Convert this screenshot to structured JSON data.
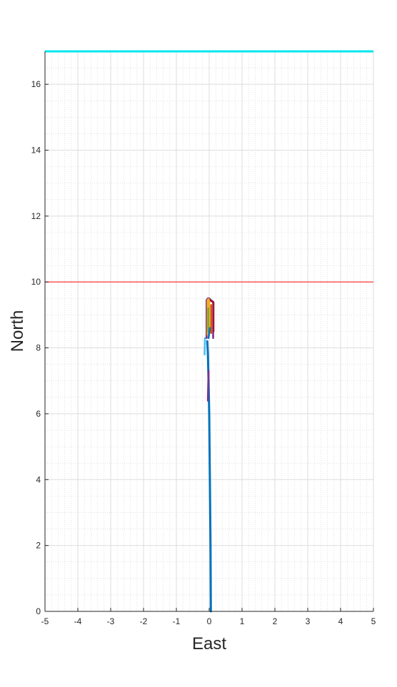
{
  "chart_data": {
    "type": "line",
    "title": "",
    "xlabel": "East",
    "ylabel": "North",
    "xlim": [
      -5,
      5
    ],
    "ylim": [
      0,
      17
    ],
    "xticks": [
      -5,
      -4,
      -3,
      -2,
      -1,
      0,
      1,
      2,
      3,
      4,
      5
    ],
    "yticks": [
      0,
      2,
      4,
      6,
      8,
      10,
      12,
      14,
      16
    ],
    "grid": true,
    "minor_grid": true,
    "reference_lines": [
      {
        "y": 17,
        "color": "#00e5ee"
      },
      {
        "y": 10,
        "color": "#ff3b3b"
      }
    ],
    "series": [
      {
        "color": "#0072bd",
        "x": [
          0.05,
          0.04,
          0.02,
          0.0,
          -0.02,
          -0.04,
          -0.06
        ],
        "y": [
          0.0,
          2.0,
          4.0,
          6.0,
          7.0,
          7.8,
          8.2
        ]
      },
      {
        "color": "#7e2f8e",
        "x": [
          -0.04,
          -0.03,
          -0.02
        ],
        "y": [
          6.4,
          6.9,
          7.3
        ]
      },
      {
        "color": "#4dbeee",
        "x": [
          -0.14,
          -0.13
        ],
        "y": [
          7.8,
          8.3
        ]
      },
      {
        "color": "#7e2f8e",
        "x": [
          -0.08,
          -0.08,
          -0.04,
          0.0,
          0.05,
          0.12,
          0.12
        ],
        "y": [
          8.3,
          9.45,
          9.5,
          9.5,
          9.45,
          9.4,
          8.3
        ]
      },
      {
        "color": "#a2142f",
        "x": [
          0.02,
          0.06,
          0.13,
          0.13
        ],
        "y": [
          9.45,
          9.42,
          9.38,
          8.5
        ]
      },
      {
        "color": "#edb120",
        "x": [
          -0.05,
          -0.05,
          -0.02,
          0.0,
          0.0
        ],
        "y": [
          8.4,
          9.45,
          9.48,
          9.4,
          8.6
        ]
      },
      {
        "color": "#77ac30",
        "x": [
          -0.03,
          -0.03
        ],
        "y": [
          8.5,
          9.2
        ]
      },
      {
        "color": "#d95319",
        "x": [
          0.06,
          0.06
        ],
        "y": [
          8.45,
          9.3
        ]
      },
      {
        "color": "#0072bd",
        "x": [
          -0.02,
          0.02
        ],
        "y": [
          8.3,
          8.6
        ]
      }
    ]
  }
}
